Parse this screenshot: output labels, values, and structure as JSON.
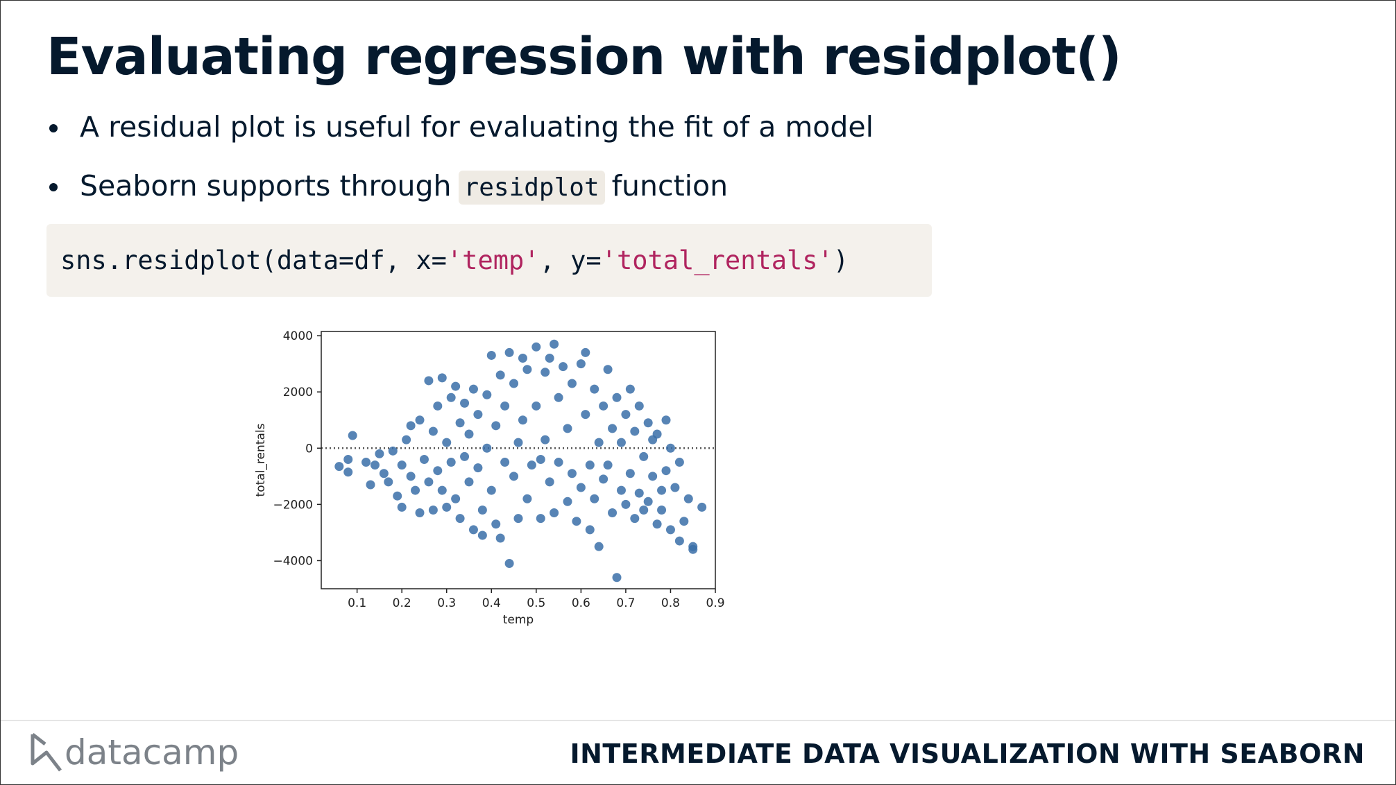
{
  "header": {
    "title": "Evaluating regression with residplot()"
  },
  "bullets": [
    {
      "text": "A residual plot is useful for evaluating the fit of a model"
    },
    {
      "before": "Seaborn supports through",
      "code": "residplot",
      "after": "function"
    }
  ],
  "code": {
    "parts": [
      "sns.residplot(data=df, x=",
      "'temp'",
      ", y=",
      "'total_rentals'",
      ")"
    ]
  },
  "footer": {
    "logo": "datacamp",
    "course": "INTERMEDIATE DATA VISUALIZATION WITH SEABORN"
  },
  "chart_data": {
    "type": "scatter",
    "xlabel": "temp",
    "ylabel": "total_rentals",
    "color": "#3a6ea8",
    "xlim": [
      0.02,
      0.9
    ],
    "ylim": [
      -5000,
      4150
    ],
    "xticks": [
      0.1,
      0.2,
      0.3,
      0.4,
      0.5,
      0.6,
      0.7,
      0.8,
      0.9
    ],
    "yticks": [
      {
        "value": -4000,
        "label": "−4000"
      },
      {
        "value": -2000,
        "label": "−2000"
      },
      0,
      2000,
      4000
    ],
    "x": [
      0.06,
      0.08,
      0.08,
      0.09,
      0.12,
      0.13,
      0.14,
      0.15,
      0.16,
      0.17,
      0.18,
      0.19,
      0.2,
      0.2,
      0.21,
      0.22,
      0.22,
      0.23,
      0.24,
      0.24,
      0.25,
      0.26,
      0.26,
      0.27,
      0.27,
      0.28,
      0.28,
      0.29,
      0.29,
      0.3,
      0.3,
      0.31,
      0.31,
      0.32,
      0.32,
      0.33,
      0.33,
      0.34,
      0.34,
      0.35,
      0.35,
      0.36,
      0.36,
      0.37,
      0.37,
      0.38,
      0.38,
      0.39,
      0.39,
      0.4,
      0.4,
      0.41,
      0.41,
      0.42,
      0.42,
      0.43,
      0.43,
      0.44,
      0.44,
      0.45,
      0.45,
      0.46,
      0.46,
      0.47,
      0.47,
      0.48,
      0.48,
      0.49,
      0.5,
      0.5,
      0.51,
      0.51,
      0.52,
      0.52,
      0.53,
      0.53,
      0.54,
      0.54,
      0.55,
      0.55,
      0.56,
      0.57,
      0.57,
      0.58,
      0.58,
      0.59,
      0.6,
      0.6,
      0.61,
      0.61,
      0.62,
      0.62,
      0.63,
      0.63,
      0.64,
      0.64,
      0.65,
      0.65,
      0.66,
      0.66,
      0.67,
      0.67,
      0.68,
      0.68,
      0.69,
      0.69,
      0.7,
      0.7,
      0.71,
      0.71,
      0.72,
      0.72,
      0.73,
      0.73,
      0.74,
      0.74,
      0.75,
      0.75,
      0.76,
      0.76,
      0.77,
      0.77,
      0.78,
      0.78,
      0.79,
      0.79,
      0.8,
      0.8,
      0.81,
      0.82,
      0.82,
      0.83,
      0.84,
      0.85,
      0.85,
      0.87
    ],
    "y": [
      -650,
      -850,
      -400,
      450,
      -500,
      -1300,
      -600,
      -200,
      -900,
      -1200,
      -100,
      -1700,
      -2100,
      -600,
      300,
      -1000,
      800,
      -1500,
      -2300,
      1000,
      -400,
      2400,
      -1200,
      600,
      -2200,
      1500,
      -800,
      2500,
      -1500,
      200,
      -2100,
      1800,
      -500,
      2200,
      -1800,
      900,
      -2500,
      1600,
      -300,
      500,
      -1200,
      2100,
      -2900,
      -700,
      1200,
      -3100,
      -2200,
      1900,
      0,
      3300,
      -1500,
      800,
      -2700,
      2600,
      -3200,
      -500,
      1500,
      3400,
      -4100,
      -1000,
      2300,
      200,
      -2500,
      3200,
      1000,
      -1800,
      2800,
      -600,
      3600,
      1500,
      -2500,
      -400,
      2700,
      300,
      3200,
      -1200,
      3700,
      -2300,
      1800,
      -500,
      2900,
      -1900,
      700,
      2300,
      -900,
      -2600,
      3000,
      -1400,
      1200,
      3400,
      -600,
      -2900,
      2100,
      -1800,
      200,
      -3500,
      1500,
      -1100,
      2800,
      -600,
      -2300,
      700,
      -4600,
      1800,
      -1500,
      200,
      1200,
      -2000,
      2100,
      -900,
      -2500,
      600,
      1500,
      -1600,
      -300,
      -2200,
      900,
      -1900,
      -1000,
      300,
      -2700,
      500,
      -1500,
      -2200,
      1000,
      -800,
      -2900,
      0,
      -1400,
      -500,
      -3300,
      -2600,
      -1800,
      -3500,
      -3600,
      -2100
    ]
  }
}
